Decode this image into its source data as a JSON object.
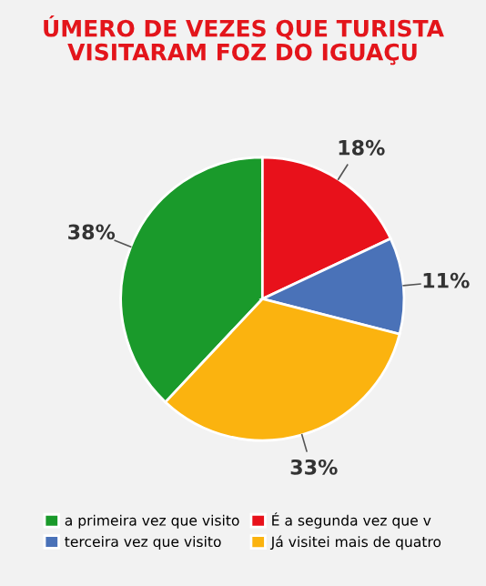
{
  "chart_data": {
    "type": "pie",
    "title": "ÚMERO DE VEZES QUE TURISTA\nVISITARAM FOZ DO IGUAÇU",
    "categories": [
      "a primeira vez que visito",
      "É a segunda vez que v",
      "terceira vez que visito",
      "Já visitei mais de quatro"
    ],
    "values": [
      38,
      18,
      11,
      33
    ],
    "colors": [
      "#1a9a2b",
      "#e8111b",
      "#4a72b8",
      "#fbb30f"
    ],
    "value_labels": [
      "38%",
      "18%",
      "11%",
      "33%"
    ],
    "legend": "bottom"
  }
}
